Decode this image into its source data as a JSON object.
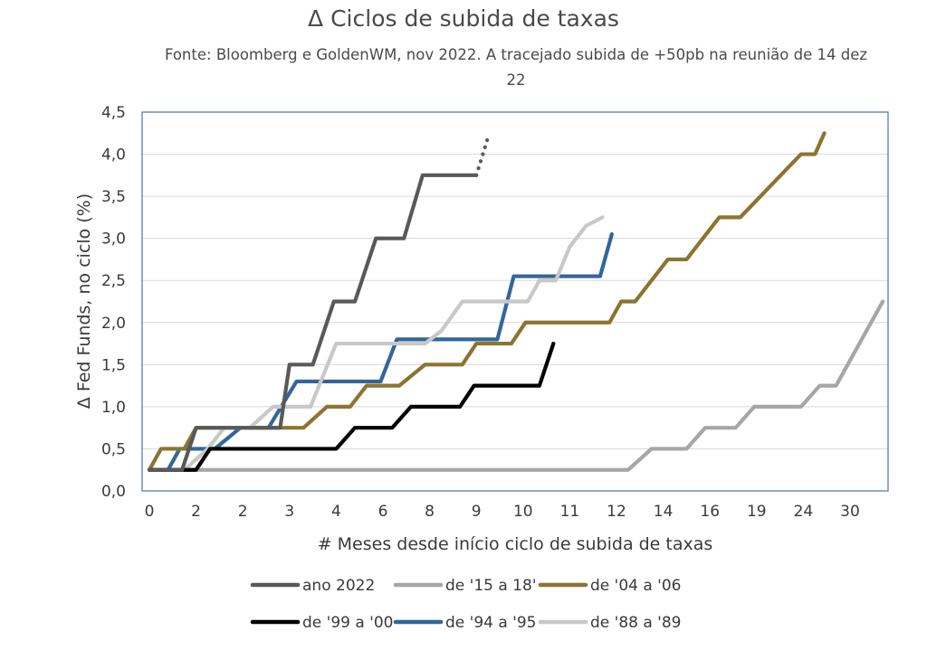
{
  "chart_data": {
    "type": "line",
    "title": "Δ Ciclos de subida de taxas",
    "subtitle": "Fonte:  Bloomberg e GoldenWM, nov 2022. A tracejado subida de +50pb na reunião de 14 dez 22",
    "xlabel": "# Meses desde início ciclo de subida de taxas",
    "ylabel": "Δ Fed Funds, no ciclo (%)",
    "ylim": [
      0,
      4.5
    ],
    "xlim": [
      0,
      31
    ],
    "y_ticks": [
      "0,0",
      "0,5",
      "1,0",
      "1,5",
      "2,0",
      "2,5",
      "3,0",
      "3,5",
      "4,0",
      "4,5"
    ],
    "x_ticks": [
      {
        "x": 0,
        "label": "0"
      },
      {
        "x": 2,
        "label": "2"
      },
      {
        "x": 4,
        "label": "2"
      },
      {
        "x": 6,
        "label": "3"
      },
      {
        "x": 8,
        "label": "4"
      },
      {
        "x": 10,
        "label": "6"
      },
      {
        "x": 12,
        "label": "8"
      },
      {
        "x": 14,
        "label": "9"
      },
      {
        "x": 16,
        "label": "10"
      },
      {
        "x": 18,
        "label": "11"
      },
      {
        "x": 20,
        "label": "12"
      },
      {
        "x": 22,
        "label": "14"
      },
      {
        "x": 24,
        "label": "16"
      },
      {
        "x": 26,
        "label": "19"
      },
      {
        "x": 28,
        "label": "24"
      },
      {
        "x": 30,
        "label": "30"
      }
    ],
    "grid": "horizontal",
    "legend_position": "bottom",
    "series": [
      {
        "name": "ano 2022",
        "color": "#595959",
        "points": [
          [
            0,
            0.25
          ],
          [
            1.4,
            0.25
          ],
          [
            2,
            0.75
          ],
          [
            3.2,
            0.75
          ],
          [
            5.6,
            0.75
          ],
          [
            6,
            1.5
          ],
          [
            7,
            1.5
          ],
          [
            7.9,
            2.25
          ],
          [
            8.8,
            2.25
          ],
          [
            9.7,
            3.0
          ],
          [
            10.9,
            3.0
          ],
          [
            11.7,
            3.75
          ],
          [
            14,
            3.75
          ]
        ],
        "projection": [
          [
            14,
            3.75
          ],
          [
            14.5,
            4.2
          ]
        ]
      },
      {
        "name": "de '15 a 18'",
        "color": "#a6a6a6",
        "points": [
          [
            0,
            0.25
          ],
          [
            20.5,
            0.25
          ],
          [
            21.5,
            0.5
          ],
          [
            23,
            0.5
          ],
          [
            23.8,
            0.75
          ],
          [
            25.1,
            0.75
          ],
          [
            25.9,
            1.0
          ],
          [
            27.9,
            1.0
          ],
          [
            28.7,
            1.25
          ],
          [
            29.4,
            1.25
          ],
          [
            31.4,
            2.25
          ]
        ]
      },
      {
        "name": "de '04 a '06",
        "color": "#8c7430",
        "points": [
          [
            0,
            0.25
          ],
          [
            0.5,
            0.5
          ],
          [
            1.5,
            0.5
          ],
          [
            2,
            0.75
          ],
          [
            4.1,
            0.75
          ],
          [
            4.7,
            0.75
          ],
          [
            5.1,
            0.75
          ],
          [
            6.6,
            0.75
          ],
          [
            7.6,
            1.0
          ],
          [
            8.6,
            1.0
          ],
          [
            9.3,
            1.25
          ],
          [
            10.7,
            1.25
          ],
          [
            11.8,
            1.5
          ],
          [
            13.4,
            1.5
          ],
          [
            14,
            1.75
          ],
          [
            15.5,
            1.75
          ],
          [
            16.1,
            2.0
          ],
          [
            19.7,
            2.0
          ],
          [
            20.2,
            2.25
          ],
          [
            20.8,
            2.25
          ],
          [
            22.2,
            2.75
          ],
          [
            23,
            2.75
          ],
          [
            24.4,
            3.25
          ],
          [
            25.3,
            3.25
          ],
          [
            27.9,
            4.0
          ],
          [
            28.5,
            4.0
          ],
          [
            28.9,
            4.25
          ]
        ]
      },
      {
        "name": "de '99 a '00",
        "color": "#000000",
        "points": [
          [
            0,
            0.25
          ],
          [
            1.3,
            0.25
          ],
          [
            2,
            0.25
          ],
          [
            2.6,
            0.5
          ],
          [
            8,
            0.5
          ],
          [
            8.8,
            0.75
          ],
          [
            10.4,
            0.75
          ],
          [
            11.2,
            1.0
          ],
          [
            13.3,
            1.0
          ],
          [
            13.9,
            1.25
          ],
          [
            16.7,
            1.25
          ],
          [
            17.3,
            1.75
          ]
        ]
      },
      {
        "name": "de '94 a '95",
        "color": "#336699",
        "points": [
          [
            0,
            0.25
          ],
          [
            0.8,
            0.25
          ],
          [
            1.3,
            0.5
          ],
          [
            2.8,
            0.5
          ],
          [
            3.9,
            0.75
          ],
          [
            5.1,
            0.75
          ],
          [
            6.3,
            1.3
          ],
          [
            9.9,
            1.3
          ],
          [
            10.6,
            1.8
          ],
          [
            14.9,
            1.8
          ],
          [
            15.6,
            2.55
          ],
          [
            19.3,
            2.55
          ],
          [
            19.8,
            3.05
          ]
        ]
      },
      {
        "name": "de '88 a '89",
        "color": "#c8c8c8",
        "points": [
          [
            0,
            0.25
          ],
          [
            1.5,
            0.25
          ],
          [
            2.5,
            0.5
          ],
          [
            3.2,
            0.75
          ],
          [
            4.3,
            0.75
          ],
          [
            5.3,
            1.0
          ],
          [
            6.9,
            1.0
          ],
          [
            8,
            1.75
          ],
          [
            11.8,
            1.75
          ],
          [
            12.5,
            1.9
          ],
          [
            13.4,
            2.25
          ],
          [
            16.2,
            2.25
          ],
          [
            16.7,
            2.5
          ],
          [
            17.4,
            2.5
          ],
          [
            18,
            2.9
          ],
          [
            18.7,
            3.15
          ],
          [
            19.4,
            3.25
          ]
        ]
      }
    ]
  }
}
